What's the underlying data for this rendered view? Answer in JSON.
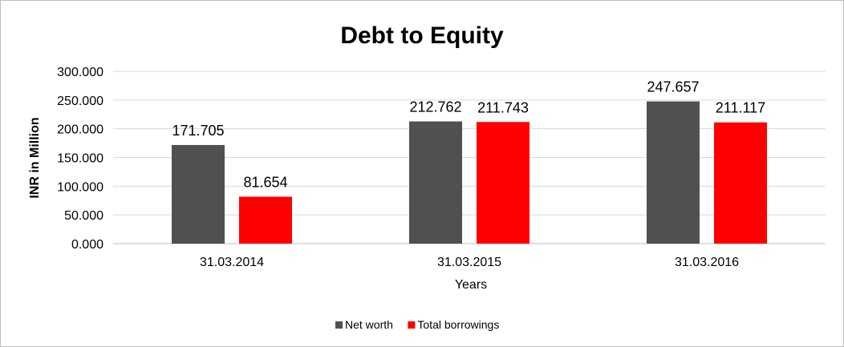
{
  "chart_data": {
    "type": "bar",
    "title": "Debt to Equity",
    "xlabel": "Years",
    "ylabel": "INR in Million",
    "categories": [
      "31.03.2014",
      "31.03.2015",
      "31.03.2016"
    ],
    "series": [
      {
        "name": "Net worth",
        "color": "#505050",
        "values": [
          171.705,
          212.762,
          247.657
        ],
        "labels": [
          "171.705",
          "212.762",
          "247.657"
        ]
      },
      {
        "name": "Total borrowings",
        "color": "#ff0000",
        "values": [
          81.654,
          211.743,
          211.117
        ],
        "labels": [
          "81.654",
          "211.743",
          "211.117"
        ]
      }
    ],
    "ylim": [
      0,
      300
    ],
    "yticks": [
      {
        "value": 0,
        "label": "0.000"
      },
      {
        "value": 50,
        "label": "50.000"
      },
      {
        "value": 100,
        "label": "100.000"
      },
      {
        "value": 150,
        "label": "150.000"
      },
      {
        "value": 200,
        "label": "200.000"
      },
      {
        "value": 250,
        "label": "250.000"
      },
      {
        "value": 300,
        "label": "300.000"
      }
    ],
    "grid": true,
    "legend_position": "bottom"
  }
}
